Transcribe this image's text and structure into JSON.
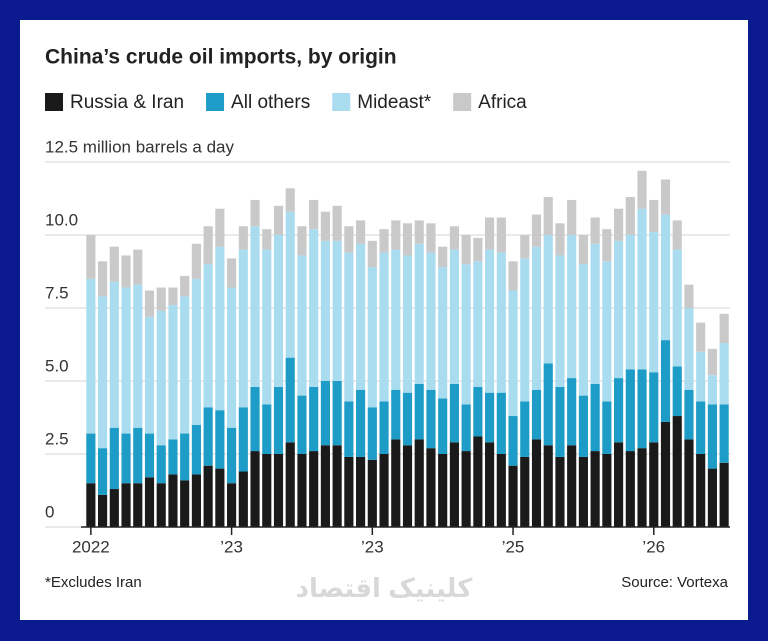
{
  "chart_data": {
    "type": "stacked-bar",
    "title": "China’s crude oil imports, by origin",
    "note": "*Excludes Iran",
    "source": "Source: Vortexa",
    "watermark": "کلینیک اقتصاد",
    "categories": [
      "2022",
      null,
      null,
      null,
      null,
      null,
      null,
      null,
      null,
      null,
      null,
      null,
      "’23",
      null,
      null,
      null,
      null,
      null,
      null,
      null,
      null,
      null,
      null,
      null,
      "’23",
      null,
      null,
      null,
      null,
      null,
      null,
      null,
      null,
      null,
      null,
      null,
      "’25",
      null,
      null,
      null,
      null,
      null,
      null,
      null,
      null,
      null,
      null,
      null,
      "’26",
      null,
      null,
      null,
      null,
      null,
      null
    ],
    "series": [
      {
        "name": "Russia & Iran",
        "color": "#1a1a1a",
        "values": [
          1.5,
          1.1,
          1.3,
          1.5,
          1.5,
          1.7,
          1.5,
          1.8,
          1.6,
          1.8,
          2.1,
          2.0,
          1.5,
          1.9,
          2.6,
          2.5,
          2.5,
          2.9,
          2.5,
          2.6,
          2.8,
          2.8,
          2.4,
          2.4,
          2.3,
          2.5,
          3.0,
          2.8,
          3.0,
          2.7,
          2.5,
          2.9,
          2.6,
          3.1,
          2.9,
          2.5,
          2.1,
          2.4,
          3.0,
          2.8,
          2.4,
          2.8,
          2.4,
          2.6,
          2.5,
          2.9,
          2.6,
          2.7,
          2.9,
          3.6,
          3.8,
          3.0,
          2.5,
          2.0,
          2.2
        ]
      },
      {
        "name": "All others",
        "color": "#1c9cc6",
        "values": [
          1.7,
          1.6,
          2.1,
          1.7,
          1.9,
          1.5,
          1.3,
          1.2,
          1.6,
          1.7,
          2.0,
          2.0,
          1.9,
          2.2,
          2.2,
          1.7,
          2.3,
          2.9,
          2.0,
          2.2,
          2.2,
          2.2,
          1.9,
          2.3,
          1.8,
          1.8,
          1.7,
          1.8,
          1.9,
          2.0,
          1.9,
          2.0,
          1.6,
          1.7,
          1.7,
          2.1,
          1.7,
          1.9,
          1.7,
          2.8,
          2.4,
          2.3,
          2.1,
          2.3,
          1.8,
          2.2,
          2.8,
          2.7,
          2.4,
          2.8,
          1.7,
          1.7,
          1.8,
          2.2,
          2.0
        ]
      },
      {
        "name": "Mideast*",
        "color": "#aadcf0",
        "values": [
          5.3,
          5.2,
          5.0,
          5.0,
          4.9,
          4.0,
          4.6,
          4.6,
          4.7,
          5.0,
          4.9,
          5.6,
          4.8,
          5.4,
          5.5,
          5.3,
          5.2,
          5.0,
          4.8,
          5.4,
          4.8,
          4.8,
          5.1,
          5.0,
          4.8,
          5.1,
          4.8,
          4.7,
          4.8,
          4.7,
          4.5,
          4.6,
          4.8,
          4.3,
          4.9,
          4.8,
          4.3,
          4.9,
          4.9,
          4.4,
          4.5,
          4.9,
          4.5,
          4.8,
          4.8,
          4.7,
          4.6,
          5.5,
          4.8,
          4.3,
          4.0,
          2.8,
          1.7,
          1.0,
          2.1
        ]
      },
      {
        "name": "Africa",
        "color": "#c9c9c9",
        "values": [
          1.5,
          1.2,
          1.2,
          1.1,
          1.2,
          0.9,
          0.8,
          0.6,
          0.7,
          1.2,
          1.3,
          1.3,
          1.0,
          0.8,
          0.9,
          0.7,
          1.0,
          0.8,
          1.0,
          1.0,
          1.0,
          1.2,
          0.9,
          0.8,
          0.9,
          0.8,
          1.0,
          1.1,
          0.8,
          1.0,
          0.7,
          0.8,
          1.0,
          0.8,
          1.1,
          1.2,
          1.0,
          0.8,
          1.1,
          1.3,
          1.1,
          1.2,
          1.0,
          0.9,
          1.1,
          1.1,
          1.3,
          1.3,
          1.1,
          1.2,
          1.0,
          0.8,
          1.0,
          0.9,
          1.0
        ]
      }
    ],
    "ylim": [
      0,
      12.5
    ],
    "yticks": [
      0,
      2.5,
      {
        "value": 5,
        "label": "5.0"
      },
      7.5,
      {
        "value": 10,
        "label": "10.0"
      },
      {
        "value": 12.5,
        "label": "12.5 million barrels a day"
      }
    ],
    "grid": true
  }
}
